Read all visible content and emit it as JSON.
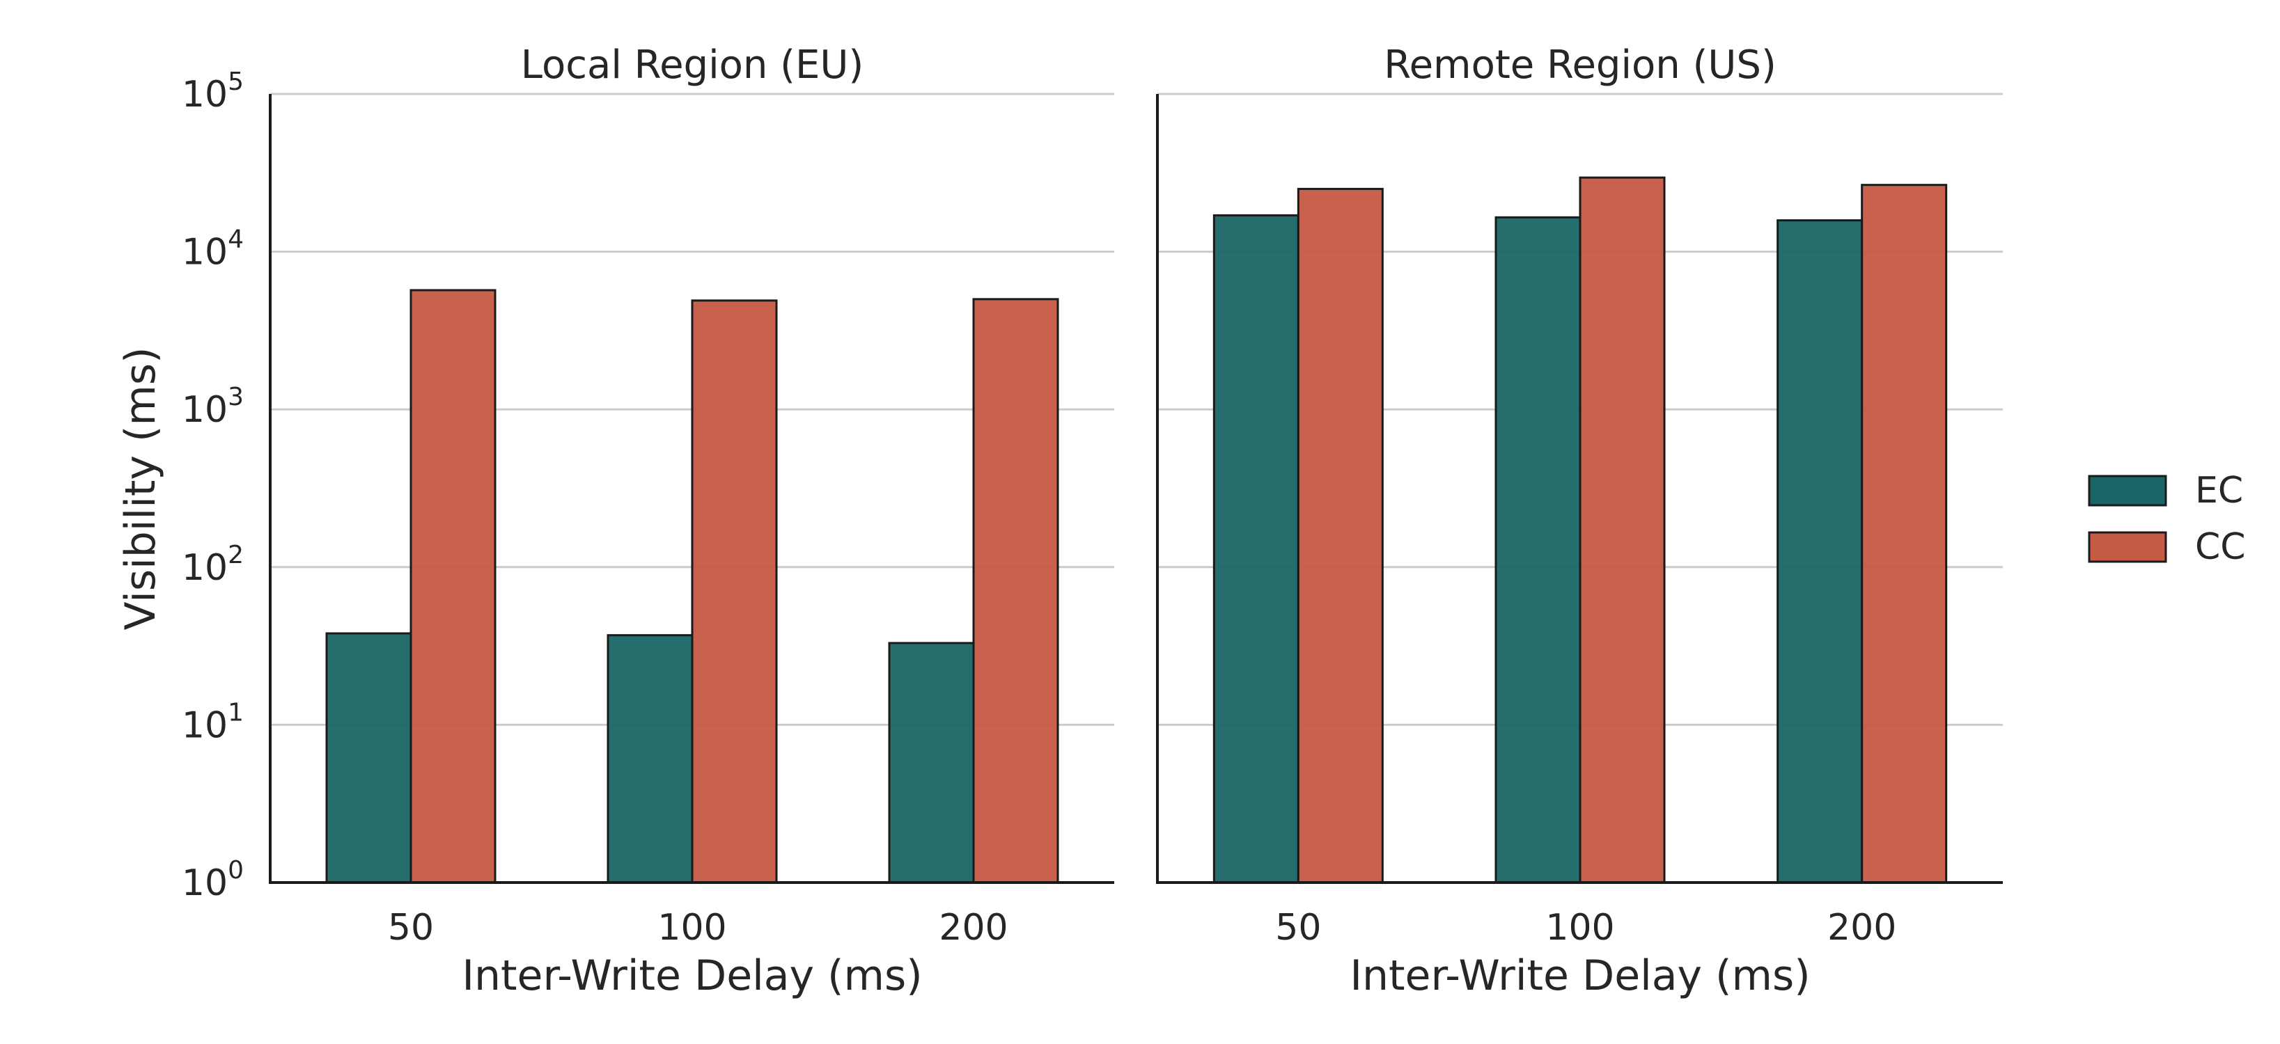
{
  "chart_data": {
    "type": "bar",
    "y_scale": "log",
    "ylim": [
      1,
      100000
    ],
    "ylabel": "Visibility (ms)",
    "y_ticks": [
      {
        "base": "10",
        "exp": "0",
        "value": 1
      },
      {
        "base": "10",
        "exp": "1",
        "value": 10
      },
      {
        "base": "10",
        "exp": "2",
        "value": 100
      },
      {
        "base": "10",
        "exp": "3",
        "value": 1000
      },
      {
        "base": "10",
        "exp": "4",
        "value": 10000
      },
      {
        "base": "10",
        "exp": "5",
        "value": 100000
      }
    ],
    "grid": "horizontal",
    "legend_position": "right",
    "colors": {
      "EC": "#1a6566",
      "CC": "#c55a45"
    },
    "panels": [
      {
        "title": "Local Region (EU)",
        "xlabel": "Inter-Write Delay (ms)",
        "categories": [
          "50",
          "100",
          "200"
        ],
        "series": [
          {
            "name": "EC",
            "values": [
              38,
              37,
              33
            ]
          },
          {
            "name": "CC",
            "values": [
              5700,
              4900,
              5000
            ]
          }
        ]
      },
      {
        "title": "Remote Region (US)",
        "xlabel": "Inter-Write Delay (ms)",
        "categories": [
          "50",
          "100",
          "200"
        ],
        "series": [
          {
            "name": "EC",
            "values": [
              17000,
              16500,
              15800
            ]
          },
          {
            "name": "CC",
            "values": [
              25000,
              29500,
              26500
            ]
          }
        ]
      }
    ]
  }
}
